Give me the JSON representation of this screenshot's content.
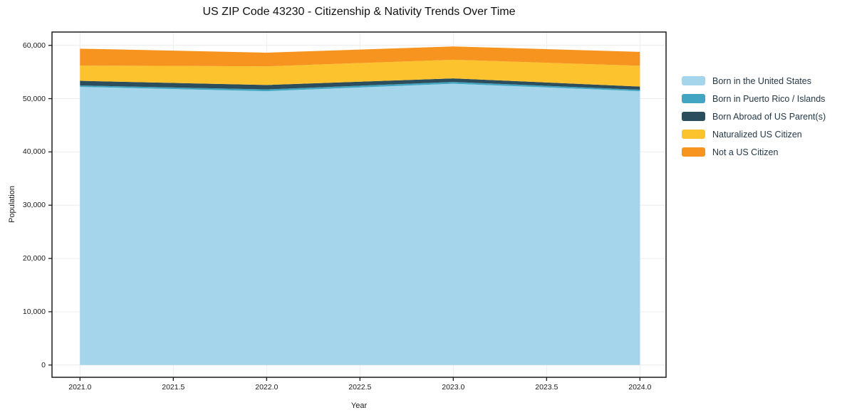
{
  "title": "US ZIP Code 43230 - Citizenship & Nativity Trends Over Time",
  "chart_data": {
    "type": "area",
    "stacked": true,
    "title": "US ZIP Code 43230 - Citizenship & Nativity Trends Over Time",
    "xlabel": "Year",
    "ylabel": "Population",
    "x": [
      2021,
      2022,
      2023,
      2024
    ],
    "series": [
      {
        "name": "Born in the United States",
        "color": "#A5D5EA",
        "values": [
          52200,
          51400,
          52800,
          51400
        ]
      },
      {
        "name": "Born in Puerto Rico / Islands",
        "color": "#42A6C2",
        "values": [
          270,
          330,
          330,
          270
        ]
      },
      {
        "name": "Born Abroad of US Parent(s)",
        "color": "#2C4D5C",
        "values": [
          870,
          830,
          670,
          600
        ]
      },
      {
        "name": "Naturalized US Citizen",
        "color": "#FDC32F",
        "values": [
          2880,
          3500,
          3500,
          3900
        ]
      },
      {
        "name": "Not a US Citizen",
        "color": "#F7941F",
        "values": [
          3160,
          2570,
          2500,
          2600
        ]
      }
    ],
    "stack_totals": [
      59380,
      58630,
      59800,
      58770
    ],
    "xticks": {
      "values": [
        2021.0,
        2021.5,
        2022.0,
        2022.5,
        2023.0,
        2023.5,
        2024.0
      ],
      "labels": [
        "2021.0",
        "2021.5",
        "2022.0",
        "2022.5",
        "2023.0",
        "2023.5",
        "2024.0"
      ]
    },
    "yticks": {
      "values": [
        0,
        10000,
        20000,
        30000,
        40000,
        50000,
        60000
      ],
      "labels": [
        "0",
        "10,000",
        "20,000",
        "30,000",
        "40,000",
        "50,000",
        "60,000"
      ]
    },
    "xlim": [
      2020.85,
      2024.14
    ],
    "ylim": [
      -2300,
      62500
    ],
    "grid": true,
    "legend_position": "right-outside"
  },
  "colors": {
    "frame": "#1c1c1c",
    "grid": "#ececec",
    "tick": "#1c1c1c",
    "background": "#ffffff"
  }
}
